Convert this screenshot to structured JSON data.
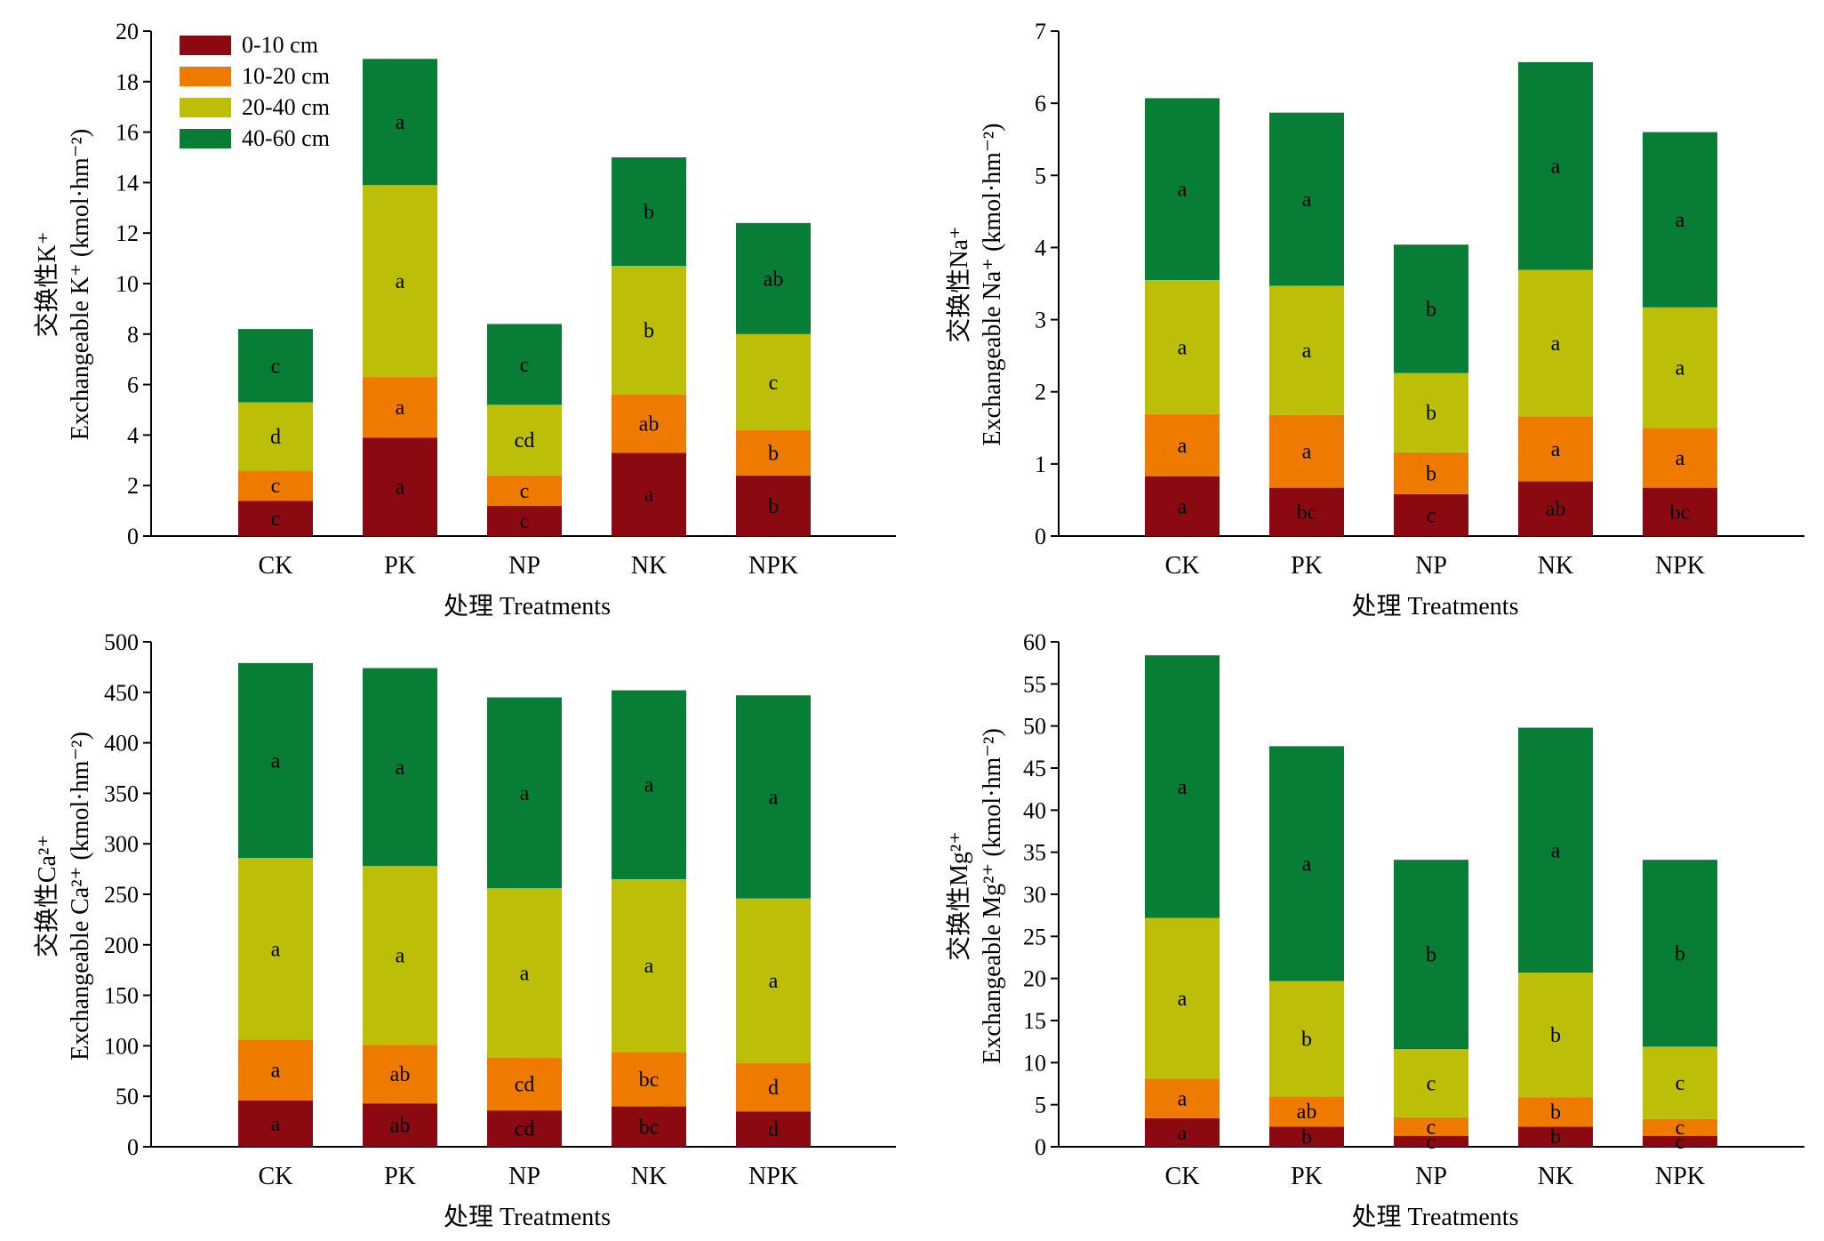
{
  "chart_data": [
    {
      "type": "bar",
      "stacked": true,
      "xlabel": "处理 Treatments",
      "ylabel_cn": "交换性K⁺",
      "ylabel_en": "Exchangeable K⁺ (kmol·hm⁻²)",
      "ylim": [
        0,
        20
      ],
      "yticks": [
        0,
        2,
        4,
        6,
        8,
        10,
        12,
        14,
        16,
        18,
        20
      ],
      "categories": [
        "CK",
        "PK",
        "NP",
        "NK",
        "NPK"
      ],
      "legend": true,
      "legend_position": "top-left",
      "series": [
        {
          "name": "0-10 cm",
          "values": [
            1.4,
            3.9,
            1.2,
            3.3,
            2.4
          ],
          "letters": [
            "c",
            "a",
            "c",
            "a",
            "b"
          ]
        },
        {
          "name": "10-20 cm",
          "values": [
            1.2,
            2.4,
            1.2,
            2.3,
            1.8
          ],
          "letters": [
            "c",
            "a",
            "c",
            "ab",
            "b"
          ]
        },
        {
          "name": "20-40 cm",
          "values": [
            2.7,
            7.6,
            2.8,
            5.1,
            3.8
          ],
          "letters": [
            "d",
            "a",
            "cd",
            "b",
            "c"
          ]
        },
        {
          "name": "40-60 cm",
          "values": [
            2.9,
            5.0,
            3.2,
            4.3,
            4.4
          ],
          "letters": [
            "c",
            "a",
            "c",
            "b",
            "ab"
          ]
        }
      ]
    },
    {
      "type": "bar",
      "stacked": true,
      "xlabel": "处理 Treatments",
      "ylabel_cn": "交换性Na⁺",
      "ylabel_en": "Exchangeable Na⁺ (kmol·hm⁻²)",
      "ylim": [
        0,
        7
      ],
      "yticks": [
        0,
        1,
        2,
        3,
        4,
        5,
        6,
        7
      ],
      "categories": [
        "CK",
        "PK",
        "NP",
        "NK",
        "NPK"
      ],
      "legend": false,
      "series": [
        {
          "name": "0-10 cm",
          "values": [
            0.83,
            0.67,
            0.58,
            0.76,
            0.67
          ],
          "letters": [
            "a",
            "bc",
            "c",
            "ab",
            "bc"
          ]
        },
        {
          "name": "10-20 cm",
          "values": [
            0.86,
            1.01,
            0.58,
            0.9,
            0.83
          ],
          "letters": [
            "a",
            "a",
            "b",
            "a",
            "a"
          ]
        },
        {
          "name": "20-40 cm",
          "values": [
            1.86,
            1.79,
            1.1,
            2.03,
            1.67
          ],
          "letters": [
            "a",
            "a",
            "b",
            "a",
            "a"
          ]
        },
        {
          "name": "40-60 cm",
          "values": [
            2.52,
            2.4,
            1.78,
            2.88,
            2.43
          ],
          "letters": [
            "a",
            "a",
            "b",
            "a",
            "a"
          ]
        }
      ]
    },
    {
      "type": "bar",
      "stacked": true,
      "xlabel": "处理 Treatments",
      "ylabel_cn": "交换性Ca²⁺",
      "ylabel_en": "Exchangeable Ca²⁺ (kmol·hm⁻²)",
      "ylim": [
        0,
        500
      ],
      "yticks": [
        0,
        50,
        100,
        150,
        200,
        250,
        300,
        350,
        400,
        450,
        500
      ],
      "categories": [
        "CK",
        "PK",
        "NP",
        "NK",
        "NPK"
      ],
      "legend": false,
      "series": [
        {
          "name": "0-10 cm",
          "values": [
            46,
            43,
            36,
            40,
            35
          ],
          "letters": [
            "a",
            "ab",
            "cd",
            "bc",
            "d"
          ]
        },
        {
          "name": "10-20 cm",
          "values": [
            60,
            58,
            52,
            54,
            48
          ],
          "letters": [
            "a",
            "ab",
            "cd",
            "bc",
            "d"
          ]
        },
        {
          "name": "20-40 cm",
          "values": [
            180,
            177,
            168,
            171,
            163
          ],
          "letters": [
            "a",
            "a",
            "a",
            "a",
            "a"
          ]
        },
        {
          "name": "40-60 cm",
          "values": [
            193,
            196,
            189,
            187,
            201
          ],
          "letters": [
            "a",
            "a",
            "a",
            "a",
            "a"
          ]
        }
      ]
    },
    {
      "type": "bar",
      "stacked": true,
      "xlabel": "处理 Treatments",
      "ylabel_cn": "交换性Mg²⁺",
      "ylabel_en": "Exchangeable Mg²⁺ (kmol·hm⁻²)",
      "ylim": [
        0,
        60
      ],
      "yticks": [
        0,
        5,
        10,
        15,
        20,
        25,
        30,
        35,
        40,
        45,
        50,
        55,
        60
      ],
      "categories": [
        "CK",
        "PK",
        "NP",
        "NK",
        "NPK"
      ],
      "legend": false,
      "series": [
        {
          "name": "0-10 cm",
          "values": [
            3.4,
            2.4,
            1.3,
            2.4,
            1.3
          ],
          "letters": [
            "a",
            "b",
            "c",
            "b",
            "c"
          ]
        },
        {
          "name": "10-20 cm",
          "values": [
            4.7,
            3.6,
            2.2,
            3.5,
            2.0
          ],
          "letters": [
            "a",
            "ab",
            "c",
            "b",
            "c"
          ]
        },
        {
          "name": "20-40 cm",
          "values": [
            19.1,
            13.7,
            8.1,
            14.8,
            8.6
          ],
          "letters": [
            "a",
            "b",
            "c",
            "b",
            "c"
          ]
        },
        {
          "name": "40-60 cm",
          "values": [
            31.2,
            27.9,
            22.5,
            29.1,
            22.2
          ],
          "letters": [
            "a",
            "a",
            "b",
            "a",
            "b"
          ]
        }
      ]
    }
  ],
  "colors": {
    "0-10 cm": "#8b0a12",
    "10-20 cm": "#ee7b00",
    "20-40 cm": "#bcbe08",
    "40-60 cm": "#077d35"
  }
}
